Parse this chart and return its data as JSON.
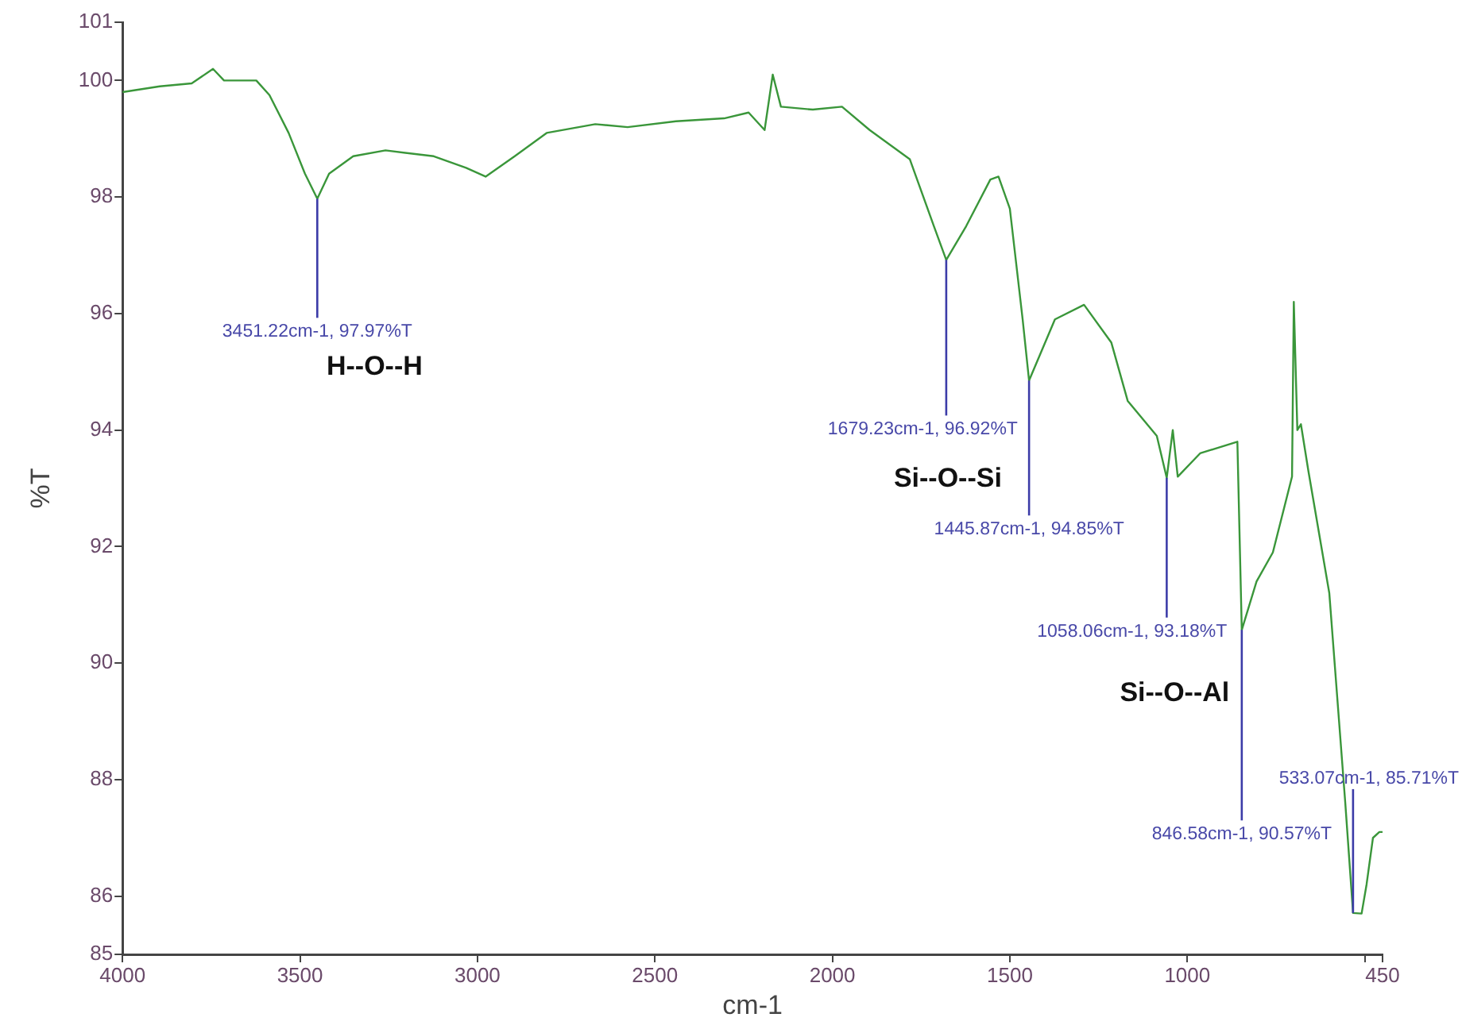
{
  "chart_data": {
    "type": "line",
    "xlabel": "cm-1",
    "ylabel": "%T",
    "xlim": [
      4000,
      450
    ],
    "xticks": [
      4000,
      3500,
      3000,
      2500,
      2000,
      1500,
      1000,
      {
        "value": 500,
        "label": null
      },
      450
    ],
    "ylim": [
      85,
      101
    ],
    "yticks": [
      85,
      86,
      88,
      90,
      92,
      94,
      96,
      98,
      100,
      101
    ],
    "grid": false,
    "legend": false,
    "marker": "none",
    "line_style": "solid",
    "series": [
      {
        "color": "#3a963a",
        "x": [
          4000,
          3895,
          3805,
          3745,
          3714,
          3623,
          3586,
          3532,
          3486,
          3451.22,
          3418,
          3350,
          3259,
          3123,
          3032,
          2977,
          2895,
          2805,
          2668,
          2577,
          2441,
          2305,
          2236,
          2191,
          2168,
          2145,
          2055,
          1973,
          1895,
          1782,
          1714,
          1679.23,
          1623,
          1555,
          1532,
          1500,
          1464,
          1445.87,
          1373,
          1291,
          1214,
          1168,
          1086,
          1058.06,
          1041,
          1027,
          964,
          859,
          846.58,
          805,
          759,
          705,
          700,
          690,
          680,
          659,
          600,
          555,
          533.07,
          509,
          495,
          477,
          459,
          450
        ],
        "values": [
          99.8,
          99.9,
          99.95,
          100.2,
          100.0,
          100.0,
          99.75,
          99.1,
          98.4,
          97.97,
          98.4,
          98.7,
          98.8,
          98.7,
          98.5,
          98.35,
          98.7,
          99.1,
          99.25,
          99.2,
          99.3,
          99.35,
          99.45,
          99.15,
          100.1,
          99.55,
          99.5,
          99.55,
          99.15,
          98.65,
          97.5,
          96.92,
          97.5,
          98.3,
          98.35,
          97.8,
          95.9,
          94.85,
          95.9,
          96.15,
          95.5,
          94.5,
          93.9,
          93.18,
          94.0,
          93.2,
          93.6,
          93.8,
          90.57,
          91.4,
          91.9,
          93.2,
          96.2,
          94.0,
          94.1,
          93.3,
          91.2,
          87.6,
          85.71,
          85.7,
          86.2,
          87.0,
          87.1,
          87.1
        ]
      }
    ],
    "annotations": [
      {
        "text": "3451.22cm-1, 97.97%T",
        "x": 3451.22,
        "y": 97.97
      },
      {
        "text": "1679.23cm-1, 96.92%T",
        "x": 1679.23,
        "y": 96.92
      },
      {
        "text": "1445.87cm-1, 94.85%T",
        "x": 1445.87,
        "y": 94.85
      },
      {
        "text": "1058.06cm-1, 93.18%T",
        "x": 1058.06,
        "y": 93.18
      },
      {
        "text": "846.58cm-1, 90.57%T",
        "x": 846.58,
        "y": 90.57
      },
      {
        "text": "533.07cm-1, 85.71%T",
        "x": 533.07,
        "y": 85.71
      },
      "H--O--H",
      "Si--O--Si",
      "Si--O--Al"
    ]
  }
}
